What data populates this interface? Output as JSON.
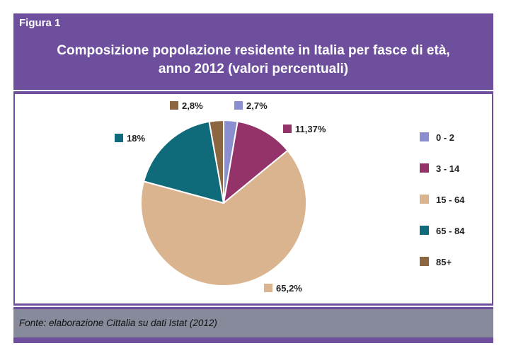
{
  "figure_label": "Figura 1",
  "source": "Fonte: elaborazione Cittalia su dati Istat (2012)",
  "chart_data": {
    "type": "pie",
    "title": "Composizione popolazione residente in Italia per fasce di età, anno 2012 (valori percentuali)",
    "title_lines": [
      "Composizione popolazione residente in Italia per fasce di età,",
      "anno 2012 (valori percentuali)"
    ],
    "categories": [
      "0 - 2",
      "3 - 14",
      "15 - 64",
      "65 - 84",
      "85+"
    ],
    "values": [
      2.7,
      11.37,
      65.2,
      18,
      2.8
    ],
    "data_labels": [
      "2,7%",
      "11,37%",
      "65,2%",
      "18%",
      "2,8%"
    ],
    "colors": [
      "#8b8fcf",
      "#93336a",
      "#d9b48f",
      "#0f6a7a",
      "#8b6641"
    ],
    "legend_position": "right"
  }
}
